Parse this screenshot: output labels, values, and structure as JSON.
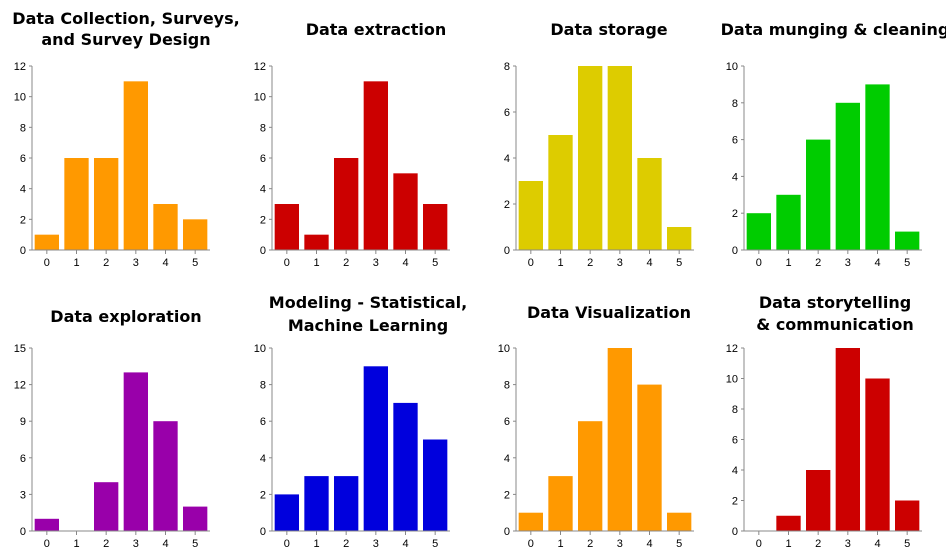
{
  "chart_data": [
    {
      "type": "bar",
      "title_lines": [
        "Data Collection, Surveys,",
        "and Survey Design"
      ],
      "color": "#ff9900",
      "categories": [
        "0",
        "1",
        "2",
        "3",
        "4",
        "5"
      ],
      "values": [
        1,
        6,
        6,
        11,
        3,
        2
      ],
      "ylim": [
        0,
        12
      ],
      "yticks": [
        0,
        2,
        4,
        6,
        8,
        10,
        12
      ]
    },
    {
      "type": "bar",
      "title_lines": [
        "Data extraction"
      ],
      "color": "#cc0000",
      "categories": [
        "0",
        "1",
        "2",
        "3",
        "4",
        "5"
      ],
      "values": [
        3,
        1,
        6,
        11,
        5,
        3
      ],
      "ylim": [
        0,
        12
      ],
      "yticks": [
        0,
        2,
        4,
        6,
        8,
        10,
        12
      ]
    },
    {
      "type": "bar",
      "title_lines": [
        "Data storage"
      ],
      "color": "#ddcc00",
      "categories": [
        "0",
        "1",
        "2",
        "3",
        "4",
        "5"
      ],
      "values": [
        3,
        5,
        8,
        8,
        4,
        1
      ],
      "ylim": [
        0,
        8
      ],
      "yticks": [
        0,
        2,
        4,
        6,
        8
      ]
    },
    {
      "type": "bar",
      "title_lines": [
        "Data munging & cleaning"
      ],
      "color": "#00cc00",
      "categories": [
        "0",
        "1",
        "2",
        "3",
        "4",
        "5"
      ],
      "values": [
        2,
        3,
        6,
        8,
        9,
        1
      ],
      "ylim": [
        0,
        10
      ],
      "yticks": [
        0,
        2,
        4,
        6,
        8,
        10
      ]
    },
    {
      "type": "bar",
      "title_lines": [
        "Data exploration"
      ],
      "color": "#9900aa",
      "categories": [
        "0",
        "1",
        "2",
        "3",
        "4",
        "5"
      ],
      "values": [
        1,
        0,
        4,
        13,
        9,
        2
      ],
      "ylim": [
        0,
        15
      ],
      "yticks": [
        0,
        3,
        6,
        9,
        12,
        15
      ]
    },
    {
      "type": "bar",
      "title_lines": [
        "Modeling - Statistical,",
        "Machine Learning"
      ],
      "color": "#0000dd",
      "categories": [
        "0",
        "1",
        "2",
        "3",
        "4",
        "5"
      ],
      "values": [
        2,
        3,
        3,
        9,
        7,
        5
      ],
      "ylim": [
        0,
        10
      ],
      "yticks": [
        0,
        2,
        4,
        6,
        8,
        10
      ]
    },
    {
      "type": "bar",
      "title_lines": [
        "Data Visualization"
      ],
      "color": "#ff9900",
      "categories": [
        "0",
        "1",
        "2",
        "3",
        "4",
        "5"
      ],
      "values": [
        1,
        3,
        6,
        10,
        8,
        1
      ],
      "ylim": [
        0,
        10
      ],
      "yticks": [
        0,
        2,
        4,
        6,
        8,
        10
      ]
    },
    {
      "type": "bar",
      "title_lines": [
        "Data storytelling",
        "& communication"
      ],
      "color": "#cc0000",
      "categories": [
        "0",
        "1",
        "2",
        "3",
        "4",
        "5"
      ],
      "values": [
        0,
        1,
        4,
        12,
        10,
        2
      ],
      "ylim": [
        0,
        12
      ],
      "yticks": [
        0,
        2,
        4,
        6,
        8,
        10,
        12
      ]
    }
  ]
}
